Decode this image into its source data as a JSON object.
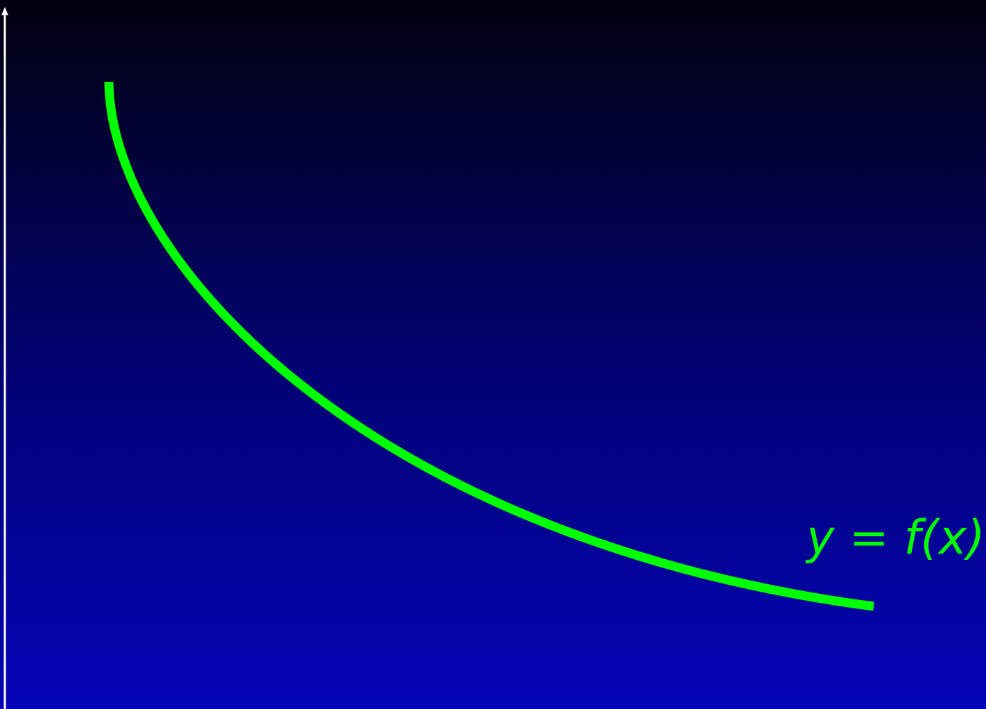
{
  "curve": {
    "label": "y = f(x)",
    "color": "#00ff00"
  },
  "axes": {
    "color": "#ffffff",
    "y_axis_arrow": true
  },
  "background": {
    "top_color": "#01010f",
    "bottom_color": "#0404b8"
  }
}
